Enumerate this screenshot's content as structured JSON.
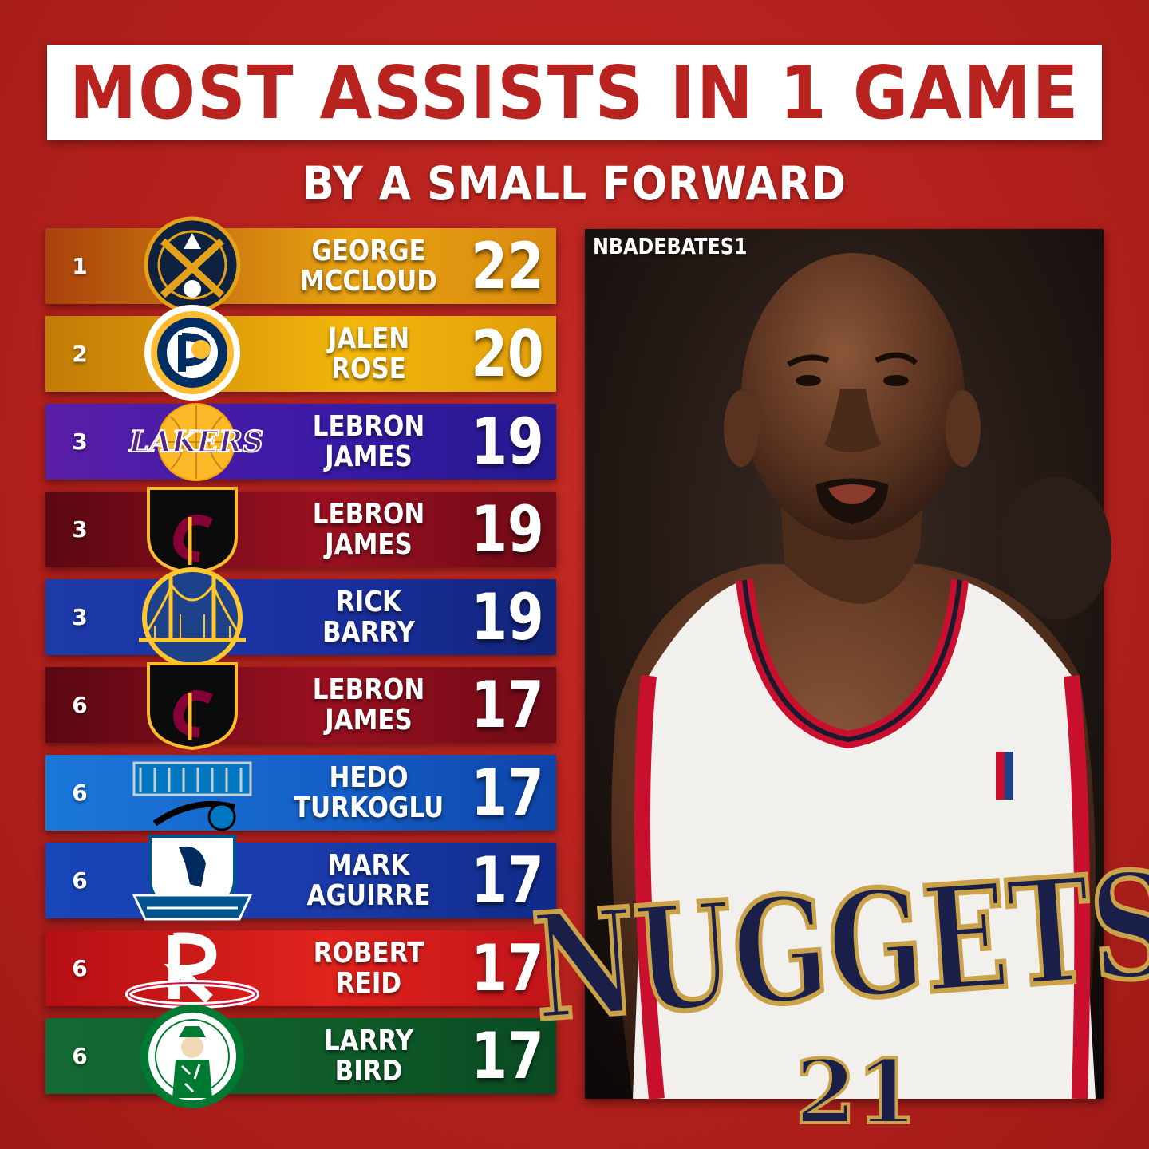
{
  "header": {
    "title": "MOST ASSISTS IN 1 GAME",
    "subtitle": "BY A SMALL FORWARD"
  },
  "watermark": "NBADEBATES1",
  "colors": {
    "background": "#b8231f",
    "title_text": "#b8231f"
  },
  "rankings": [
    {
      "rank": "1",
      "first": "GEORGE",
      "last": "MCCLOUD",
      "assists": "22",
      "team_icon": "nuggets-logo-icon",
      "gradient": [
        "#a8420c",
        "#e8a412"
      ]
    },
    {
      "rank": "2",
      "first": "JALEN",
      "last": "ROSE",
      "assists": "20",
      "team_icon": "pacers-logo-icon",
      "gradient": [
        "#c27a08",
        "#f2b70c"
      ]
    },
    {
      "rank": "3",
      "first": "LEBRON",
      "last": "JAMES",
      "assists": "19",
      "team_icon": "lakers-logo-icon",
      "gradient": [
        "#5a1ea8",
        "#2a1a9e"
      ]
    },
    {
      "rank": "3",
      "first": "LEBRON",
      "last": "JAMES",
      "assists": "19",
      "team_icon": "cavaliers-logo-icon",
      "gradient": [
        "#5a0812",
        "#8c0d1d"
      ]
    },
    {
      "rank": "3",
      "first": "RICK",
      "last": "BARRY",
      "assists": "19",
      "team_icon": "warriors-logo-icon",
      "gradient": [
        "#1c3aa8",
        "#14267a"
      ]
    },
    {
      "rank": "6",
      "first": "LEBRON",
      "last": "JAMES",
      "assists": "17",
      "team_icon": "cavaliers-logo-icon",
      "gradient": [
        "#5a0812",
        "#8c0d1d"
      ]
    },
    {
      "rank": "6",
      "first": "HEDO",
      "last": "TURKOGLU",
      "assists": "17",
      "team_icon": "magic-logo-icon",
      "gradient": [
        "#1a78d8",
        "#0e4cb0"
      ]
    },
    {
      "rank": "6",
      "first": "MARK",
      "last": "AGUIRRE",
      "assists": "17",
      "team_icon": "mavericks-logo-icon",
      "gradient": [
        "#1846b8",
        "#102e8c"
      ]
    },
    {
      "rank": "6",
      "first": "ROBERT",
      "last": "REID",
      "assists": "17",
      "team_icon": "rockets-logo-icon",
      "gradient": [
        "#b50f14",
        "#e0231c"
      ]
    },
    {
      "rank": "6",
      "first": "LARRY",
      "last": "BIRD",
      "assists": "17",
      "team_icon": "celtics-logo-icon",
      "gradient": [
        "#146a32",
        "#0c5426"
      ]
    }
  ],
  "photo": {
    "jersey_text": "NUGGETS",
    "jersey_number": "21"
  }
}
